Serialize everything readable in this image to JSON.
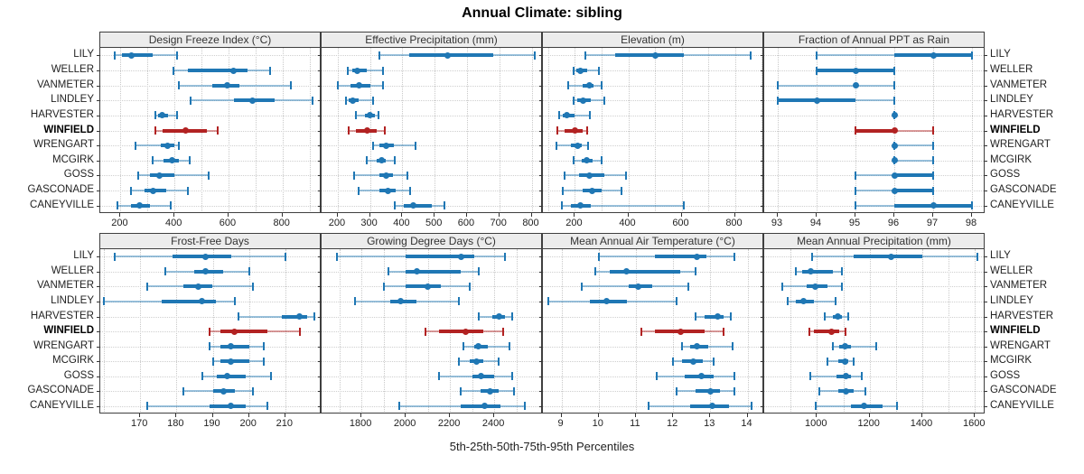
{
  "title": "Annual Climate: sibling",
  "caption": "5th-25th-50th-75th-95th Percentiles",
  "percentile_labels": [
    "5th",
    "25th",
    "50th",
    "75th",
    "95th"
  ],
  "colors": {
    "series": "#1f77b4",
    "highlight": "#b22222",
    "grid": "#cfcfcf",
    "panel_border": "#3f3f3f",
    "header_bg": "#ececec",
    "text": "#1a1a1a"
  },
  "stations": [
    {
      "label": "LILY",
      "highlight": false
    },
    {
      "label": "WELLER",
      "highlight": false
    },
    {
      "label": "VANMETER",
      "highlight": false
    },
    {
      "label": "LINDLEY",
      "highlight": false
    },
    {
      "label": "HARVESTER",
      "highlight": false
    },
    {
      "label": "WINFIELD",
      "highlight": true
    },
    {
      "label": "WRENGART",
      "highlight": false
    },
    {
      "label": "MCGIRK",
      "highlight": false
    },
    {
      "label": "GOSS",
      "highlight": false
    },
    {
      "label": "GASCONADE",
      "highlight": false
    },
    {
      "label": "CANEYVILLE",
      "highlight": false
    }
  ],
  "chart_data": [
    {
      "type": "scatter",
      "style": "percentile-intervals",
      "row": 0,
      "col": 0,
      "title": "Design Freeze Index (°C)",
      "xlim": [
        125,
        945
      ],
      "ticks": [
        200,
        400,
        600,
        800
      ],
      "gridlines": [
        200,
        300,
        400,
        500,
        600,
        700,
        800,
        900
      ],
      "values": [
        [
          180,
          205,
          240,
          320,
          410
        ],
        [
          395,
          450,
          620,
          670,
          755
        ],
        [
          415,
          540,
          595,
          640,
          830
        ],
        [
          460,
          620,
          690,
          770,
          910
        ],
        [
          330,
          340,
          355,
          375,
          410
        ],
        [
          330,
          355,
          440,
          520,
          560
        ],
        [
          255,
          350,
          375,
          400,
          415
        ],
        [
          320,
          360,
          390,
          415,
          455
        ],
        [
          265,
          310,
          345,
          400,
          525
        ],
        [
          240,
          290,
          320,
          370,
          450
        ],
        [
          190,
          240,
          270,
          310,
          385
        ]
      ]
    },
    {
      "type": "scatter",
      "style": "percentile-intervals",
      "row": 0,
      "col": 1,
      "title": "Effective Precipitation (mm)",
      "xlim": [
        150,
        835
      ],
      "ticks": [
        200,
        300,
        400,
        500,
        600,
        700,
        800
      ],
      "gridlines": [
        200,
        300,
        400,
        500,
        600,
        700,
        800
      ],
      "values": [
        [
          330,
          420,
          540,
          680,
          810
        ],
        [
          230,
          245,
          260,
          290,
          340
        ],
        [
          200,
          240,
          265,
          300,
          340
        ],
        [
          225,
          235,
          245,
          265,
          310
        ],
        [
          255,
          285,
          300,
          315,
          325
        ],
        [
          235,
          255,
          290,
          320,
          345
        ],
        [
          310,
          330,
          350,
          375,
          440
        ],
        [
          290,
          320,
          335,
          350,
          375
        ],
        [
          250,
          330,
          350,
          370,
          415
        ],
        [
          265,
          330,
          355,
          380,
          425
        ],
        [
          375,
          405,
          435,
          490,
          530
        ]
      ]
    },
    {
      "type": "scatter",
      "style": "percentile-intervals",
      "row": 0,
      "col": 2,
      "title": "Elevation (m)",
      "xlim": [
        80,
        910
      ],
      "ticks": [
        200,
        400,
        600,
        800
      ],
      "gridlines": [
        100,
        200,
        300,
        400,
        500,
        600,
        700,
        800,
        900
      ],
      "values": [
        [
          240,
          350,
          500,
          610,
          860
        ],
        [
          195,
          205,
          220,
          245,
          290
        ],
        [
          175,
          230,
          255,
          270,
          300
        ],
        [
          195,
          210,
          230,
          260,
          310
        ],
        [
          140,
          155,
          170,
          200,
          255
        ],
        [
          135,
          160,
          200,
          230,
          245
        ],
        [
          130,
          185,
          210,
          225,
          250
        ],
        [
          195,
          225,
          245,
          265,
          300
        ],
        [
          160,
          215,
          255,
          310,
          390
        ],
        [
          155,
          230,
          265,
          300,
          375
        ],
        [
          150,
          185,
          220,
          260,
          610
        ]
      ]
    },
    {
      "type": "scatter",
      "style": "percentile-intervals",
      "row": 0,
      "col": 3,
      "title": "Fraction of Annual PPT as Rain",
      "xlim": [
        92.65,
        98.35
      ],
      "ticks": [
        93,
        94,
        95,
        96,
        97,
        98
      ],
      "gridlines": [
        93,
        94,
        95,
        96,
        97,
        98
      ],
      "values": [
        [
          94,
          96,
          97,
          98,
          98
        ],
        [
          94,
          94,
          95,
          96,
          96
        ],
        [
          93,
          95,
          95,
          95,
          96
        ],
        [
          93,
          93,
          94,
          95,
          96
        ],
        [
          96,
          96,
          96,
          96,
          96
        ],
        [
          95,
          95,
          96,
          96,
          97
        ],
        [
          96,
          96,
          96,
          96,
          97
        ],
        [
          96,
          96,
          96,
          96,
          97
        ],
        [
          95,
          96,
          96,
          97,
          97
        ],
        [
          95,
          96,
          96,
          97,
          97
        ],
        [
          95,
          96,
          97,
          98,
          98
        ]
      ]
    },
    {
      "type": "scatter",
      "style": "percentile-intervals",
      "row": 1,
      "col": 0,
      "title": "Frost-Free Days",
      "xlim": [
        159,
        220
      ],
      "ticks": [
        170,
        180,
        190,
        200,
        210
      ],
      "gridlines": [
        160,
        170,
        180,
        190,
        200,
        210
      ],
      "values": [
        [
          163,
          179,
          188,
          195,
          210
        ],
        [
          177,
          185,
          188,
          193,
          200
        ],
        [
          172,
          182,
          186,
          190,
          201
        ],
        [
          160,
          176,
          187,
          191,
          196
        ],
        [
          197,
          209,
          214,
          216,
          218
        ],
        [
          189,
          192,
          196,
          205,
          214
        ],
        [
          189,
          192,
          195,
          200,
          204
        ],
        [
          190,
          192,
          195,
          200,
          204
        ],
        [
          187,
          191,
          194,
          199,
          206
        ],
        [
          182,
          190,
          193,
          196,
          201
        ],
        [
          172,
          189,
          195,
          199,
          205
        ]
      ]
    },
    {
      "type": "scatter",
      "style": "percentile-intervals",
      "row": 1,
      "col": 1,
      "title": "Growing Degree Days (°C)",
      "xlim": [
        1620,
        2620
      ],
      "ticks": [
        1800,
        2000,
        2200,
        2400
      ],
      "gridlines": [
        1700,
        1800,
        1900,
        2000,
        2100,
        2200,
        2300,
        2400,
        2500
      ],
      "values": [
        [
          1690,
          2000,
          2250,
          2310,
          2450
        ],
        [
          1920,
          2000,
          2050,
          2250,
          2330
        ],
        [
          1900,
          2000,
          2100,
          2160,
          2290
        ],
        [
          1770,
          1930,
          1975,
          2050,
          2240
        ],
        [
          2330,
          2390,
          2420,
          2450,
          2480
        ],
        [
          2090,
          2150,
          2270,
          2350,
          2440
        ],
        [
          2260,
          2310,
          2330,
          2370,
          2470
        ],
        [
          2240,
          2290,
          2320,
          2350,
          2420
        ],
        [
          2150,
          2300,
          2340,
          2400,
          2480
        ],
        [
          2250,
          2340,
          2380,
          2420,
          2490
        ],
        [
          1970,
          2250,
          2355,
          2430,
          2540
        ]
      ]
    },
    {
      "type": "scatter",
      "style": "percentile-intervals",
      "row": 1,
      "col": 2,
      "title": "Mean Annual Air Temperature (°C)",
      "xlim": [
        8.5,
        14.45
      ],
      "ticks": [
        9,
        10,
        11,
        12,
        13,
        14
      ],
      "gridlines": [
        9,
        10,
        11,
        12,
        13,
        14
      ],
      "values": [
        [
          10.0,
          11.5,
          12.65,
          12.9,
          13.65
        ],
        [
          9.9,
          10.3,
          10.75,
          12.2,
          12.6
        ],
        [
          9.55,
          10.8,
          11.05,
          11.45,
          12.4
        ],
        [
          8.65,
          9.75,
          10.2,
          10.75,
          12.1
        ],
        [
          12.6,
          12.85,
          13.2,
          13.35,
          13.55
        ],
        [
          11.15,
          11.5,
          12.2,
          12.85,
          13.35
        ],
        [
          12.25,
          12.45,
          12.65,
          12.95,
          13.6
        ],
        [
          12.0,
          12.25,
          12.55,
          12.8,
          13.1
        ],
        [
          11.55,
          12.3,
          12.75,
          13.1,
          13.65
        ],
        [
          12.1,
          12.6,
          13.0,
          13.25,
          13.65
        ],
        [
          11.35,
          12.45,
          13.05,
          13.5,
          14.1
        ]
      ]
    },
    {
      "type": "scatter",
      "style": "percentile-intervals",
      "row": 1,
      "col": 3,
      "title": "Mean Annual Precipitation (mm)",
      "xlim": [
        800,
        1640
      ],
      "ticks": [
        1000,
        1200,
        1400,
        1600
      ],
      "gridlines": [
        900,
        1000,
        1100,
        1200,
        1300,
        1400,
        1500,
        1600
      ],
      "values": [
        [
          980,
          1140,
          1280,
          1400,
          1610
        ],
        [
          920,
          945,
          975,
          1060,
          1095
        ],
        [
          870,
          960,
          995,
          1040,
          1095
        ],
        [
          890,
          920,
          950,
          990,
          1070
        ],
        [
          1030,
          1060,
          1080,
          1095,
          1120
        ],
        [
          970,
          990,
          1055,
          1085,
          1110
        ],
        [
          1060,
          1085,
          1105,
          1130,
          1225
        ],
        [
          1040,
          1080,
          1105,
          1120,
          1140
        ],
        [
          975,
          1075,
          1110,
          1130,
          1170
        ],
        [
          1010,
          1080,
          1110,
          1140,
          1185
        ],
        [
          995,
          1130,
          1180,
          1250,
          1305
        ]
      ]
    }
  ]
}
